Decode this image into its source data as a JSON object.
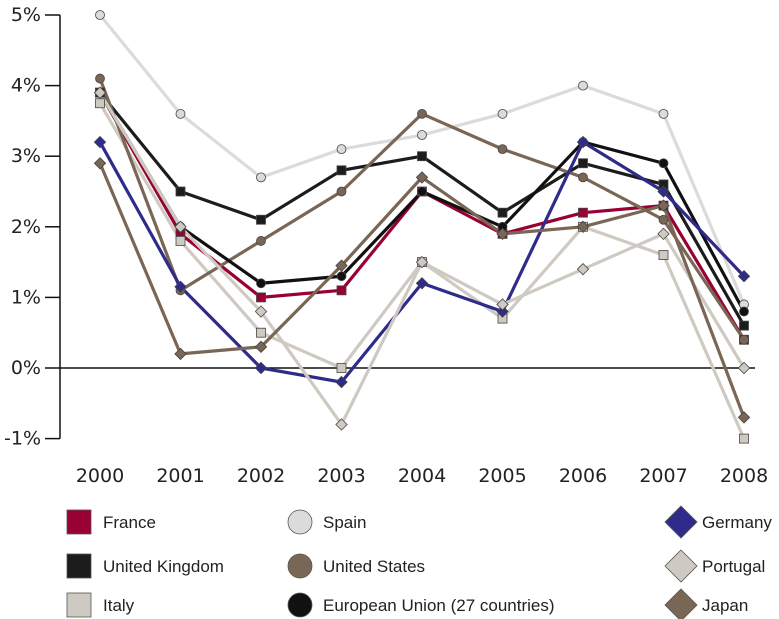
{
  "chart_data": {
    "type": "line",
    "title": "",
    "xlabel": "",
    "ylabel": "",
    "x": [
      "2000",
      "2001",
      "2002",
      "2003",
      "2004",
      "2005",
      "2006",
      "2007",
      "2008"
    ],
    "ylim": [
      -1,
      5
    ],
    "y_tick_labels": [
      "5%",
      "4%",
      "3%",
      "2%",
      "1%",
      "0%",
      "-1%"
    ],
    "y_tick_values": [
      5,
      4,
      3,
      2,
      1,
      0,
      -1
    ],
    "grid": false,
    "legend_position": "bottom",
    "series": [
      {
        "name": "France",
        "color": "#990033",
        "marker": "square",
        "values": [
          3.9,
          1.9,
          1.0,
          1.1,
          2.5,
          1.9,
          2.2,
          2.3,
          0.4
        ]
      },
      {
        "name": "United Kingdom",
        "color": "#1c1c1c",
        "marker": "square",
        "values": [
          3.9,
          2.5,
          2.1,
          2.8,
          3.0,
          2.2,
          2.9,
          2.6,
          0.6
        ]
      },
      {
        "name": "Italy",
        "color": "#cfcac1",
        "marker": "square",
        "values": [
          3.75,
          1.8,
          0.5,
          0.0,
          1.5,
          0.7,
          2.0,
          1.6,
          -1.0
        ]
      },
      {
        "name": "Spain",
        "color": "#dbdbdb",
        "marker": "circle",
        "values": [
          5.0,
          3.6,
          2.7,
          3.1,
          3.3,
          3.6,
          4.0,
          3.6,
          0.9
        ]
      },
      {
        "name": "United States",
        "color": "#7a6655",
        "marker": "circle",
        "values": [
          4.1,
          1.1,
          1.8,
          2.5,
          3.6,
          3.1,
          2.7,
          2.1,
          0.4
        ]
      },
      {
        "name": "European Union (27 countries)",
        "color": "#111111",
        "marker": "circle",
        "values": [
          3.9,
          2.0,
          1.2,
          1.3,
          2.5,
          2.0,
          3.2,
          2.9,
          0.8
        ]
      },
      {
        "name": "Germany",
        "color": "#2e2b8a",
        "marker": "diamond",
        "values": [
          3.2,
          1.15,
          0.0,
          -0.2,
          1.2,
          0.8,
          3.2,
          2.5,
          1.3
        ]
      },
      {
        "name": "Portugal",
        "color": "#cfcac1",
        "marker": "diamond",
        "values": [
          3.9,
          2.0,
          0.8,
          -0.8,
          1.5,
          0.9,
          1.4,
          1.9,
          0.0
        ]
      },
      {
        "name": "Japan",
        "color": "#7a6655",
        "marker": "diamond",
        "values": [
          2.9,
          0.2,
          0.3,
          1.45,
          2.7,
          1.9,
          2.0,
          2.3,
          -0.7
        ]
      }
    ]
  }
}
